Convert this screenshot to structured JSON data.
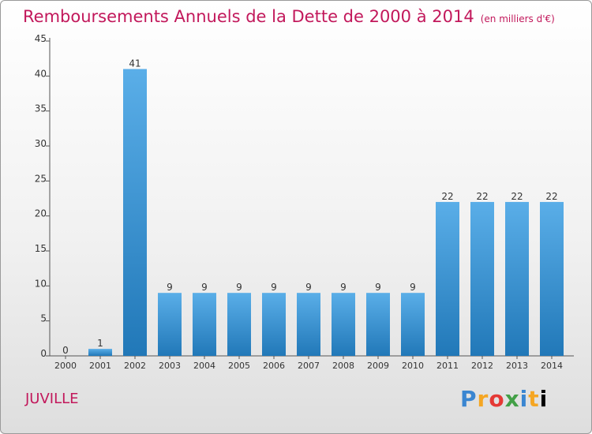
{
  "header": {
    "title": "Remboursements Annuels de la Dette de 2000 à 2014",
    "unit": "(en milliers d'€)"
  },
  "footer": {
    "city": "JUVILLE",
    "brand": "Proxiti"
  },
  "colors": {
    "title": "#c2185b",
    "bar_top": "#5aaee8",
    "bar_bottom": "#2178b8"
  },
  "chart_data": {
    "type": "bar",
    "title": "Remboursements Annuels de la Dette de 2000 à 2014",
    "xlabel": "",
    "ylabel": "",
    "categories": [
      "2000",
      "2001",
      "2002",
      "2003",
      "2004",
      "2005",
      "2006",
      "2007",
      "2008",
      "2009",
      "2010",
      "2011",
      "2012",
      "2013",
      "2014"
    ],
    "values": [
      0,
      1,
      41,
      9,
      9,
      9,
      9,
      9,
      9,
      9,
      9,
      22,
      22,
      22,
      22
    ],
    "ylim": [
      0,
      45
    ],
    "yticks": [
      0,
      5,
      10,
      15,
      20,
      25,
      30,
      35,
      40,
      45
    ],
    "grid": false,
    "data_labels": true
  }
}
